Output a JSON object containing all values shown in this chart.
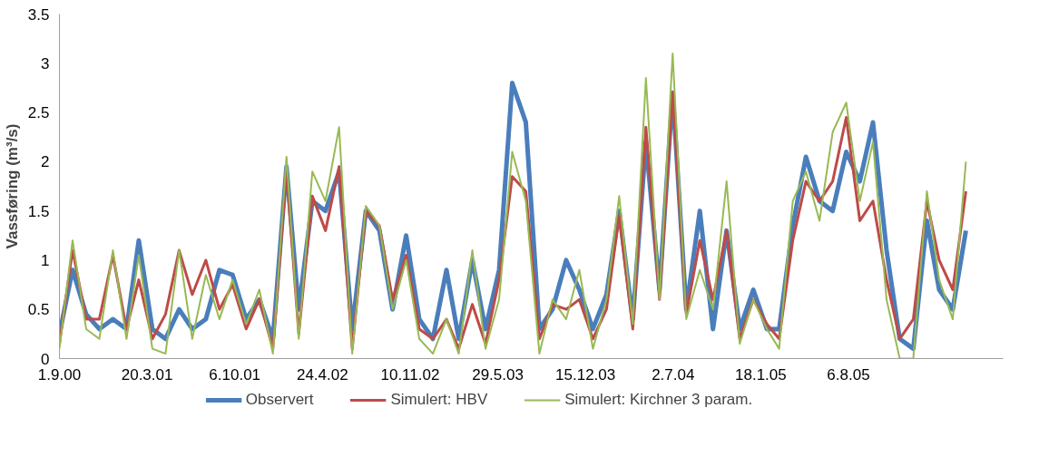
{
  "chart_data": {
    "type": "line",
    "ylabel": "Vassføring (m³/s)",
    "x": [
      "2000-09-01",
      "2000-10-01",
      "2000-11-01",
      "2000-12-01",
      "2001-01-01",
      "2001-02-01",
      "2001-03-01",
      "2001-04-01",
      "2001-05-01",
      "2001-06-01",
      "2001-07-01",
      "2001-08-01",
      "2001-09-01",
      "2001-10-01",
      "2001-11-01",
      "2001-12-01",
      "2002-01-01",
      "2002-02-01",
      "2002-03-01",
      "2002-04-01",
      "2002-05-01",
      "2002-06-01",
      "2002-07-01",
      "2002-08-01",
      "2002-09-01",
      "2002-10-01",
      "2002-11-01",
      "2002-12-01",
      "2003-01-01",
      "2003-02-01",
      "2003-03-01",
      "2003-04-01",
      "2003-05-01",
      "2003-06-01",
      "2003-07-01",
      "2003-08-01",
      "2003-09-01",
      "2003-10-01",
      "2003-11-01",
      "2003-12-01",
      "2004-01-01",
      "2004-02-01",
      "2004-03-01",
      "2004-04-01",
      "2004-05-01",
      "2004-06-01",
      "2004-07-01",
      "2004-08-01",
      "2004-09-01",
      "2004-10-01",
      "2004-11-01",
      "2004-12-01",
      "2005-01-01",
      "2005-02-01",
      "2005-03-01",
      "2005-04-01",
      "2005-05-01",
      "2005-06-01",
      "2005-07-01",
      "2005-08-01",
      "2005-09-01",
      "2005-10-01",
      "2005-11-01",
      "2005-12-01",
      "2006-01-01",
      "2006-02-01",
      "2006-03-01",
      "2006-04-01",
      "2006-05-01"
    ],
    "series": [
      {
        "name": "Observert",
        "color": "#4a7ebb",
        "values": [
          0.25,
          0.9,
          0.45,
          0.3,
          0.4,
          0.3,
          1.2,
          0.3,
          0.2,
          0.5,
          0.3,
          0.4,
          0.9,
          0.85,
          0.4,
          0.6,
          0.2,
          1.95,
          0.5,
          1.6,
          1.5,
          1.9,
          0.3,
          1.5,
          1.3,
          0.5,
          1.25,
          0.4,
          0.2,
          0.9,
          0.2,
          1.0,
          0.3,
          0.9,
          2.8,
          2.4,
          0.3,
          0.5,
          1.0,
          0.7,
          0.3,
          0.65,
          1.5,
          0.4,
          2.2,
          0.7,
          2.7,
          0.5,
          1.5,
          0.3,
          1.3,
          0.3,
          0.7,
          0.3,
          0.3,
          1.35,
          2.05,
          1.6,
          1.5,
          2.1,
          1.8,
          2.4,
          1.1,
          0.2,
          0.1,
          1.4,
          0.7,
          0.5,
          1.3
        ]
      },
      {
        "name": "Simulert: HBV",
        "color": "#be4b48",
        "values": [
          0.15,
          1.1,
          0.4,
          0.4,
          1.05,
          0.3,
          0.8,
          0.2,
          0.45,
          1.1,
          0.65,
          1.0,
          0.5,
          0.75,
          0.3,
          0.6,
          0.1,
          1.9,
          0.25,
          1.65,
          1.3,
          1.95,
          0.1,
          1.5,
          1.35,
          0.6,
          1.05,
          0.3,
          0.2,
          0.4,
          0.1,
          0.55,
          0.15,
          0.8,
          1.85,
          1.7,
          0.2,
          0.55,
          0.5,
          0.6,
          0.2,
          0.5,
          1.45,
          0.3,
          2.35,
          0.6,
          2.7,
          0.45,
          1.2,
          0.6,
          1.3,
          0.2,
          0.6,
          0.35,
          0.2,
          1.2,
          1.8,
          1.6,
          1.8,
          2.45,
          1.4,
          1.6,
          0.8,
          0.2,
          0.4,
          1.6,
          1.0,
          0.7,
          1.7
        ]
      },
      {
        "name": "Simulert: Kirchner 3 param.",
        "color": "#98b954",
        "values": [
          0.1,
          1.2,
          0.3,
          0.2,
          1.1,
          0.2,
          1.05,
          0.1,
          0.05,
          1.1,
          0.2,
          0.85,
          0.4,
          0.8,
          0.35,
          0.7,
          0.05,
          2.05,
          0.2,
          1.9,
          1.6,
          2.35,
          0.05,
          1.55,
          1.35,
          0.5,
          1.0,
          0.2,
          0.05,
          0.4,
          0.05,
          1.1,
          0.1,
          0.6,
          2.1,
          1.6,
          0.05,
          0.6,
          0.4,
          0.9,
          0.1,
          0.6,
          1.65,
          0.35,
          2.85,
          0.6,
          3.1,
          0.4,
          0.9,
          0.5,
          1.8,
          0.15,
          0.6,
          0.3,
          0.1,
          1.6,
          1.9,
          1.4,
          2.3,
          2.6,
          1.6,
          2.2,
          0.6,
          0.0,
          0.0,
          1.7,
          0.8,
          0.4,
          2.0
        ]
      }
    ],
    "xlim": [
      "2000-09-01",
      "2006-07-25"
    ],
    "xticks": [
      {
        "value": "2000-09-01",
        "label": "1.9.00"
      },
      {
        "value": "2001-03-20",
        "label": "20.3.01"
      },
      {
        "value": "2001-10-06",
        "label": "6.10.01"
      },
      {
        "value": "2002-04-24",
        "label": "24.4.02"
      },
      {
        "value": "2002-11-10",
        "label": "10.11.02"
      },
      {
        "value": "2003-05-29",
        "label": "29.5.03"
      },
      {
        "value": "2003-12-15",
        "label": "15.12.03"
      },
      {
        "value": "2004-07-02",
        "label": "2.7.04"
      },
      {
        "value": "2005-01-18",
        "label": "18.1.05"
      },
      {
        "value": "2005-08-06",
        "label": "6.8.05"
      }
    ],
    "ylim": [
      0,
      3.5
    ],
    "yticks": [
      0,
      0.5,
      1,
      1.5,
      2,
      2.5,
      3,
      3.5
    ],
    "grid": false,
    "legend": "bottom",
    "marker": "none"
  }
}
